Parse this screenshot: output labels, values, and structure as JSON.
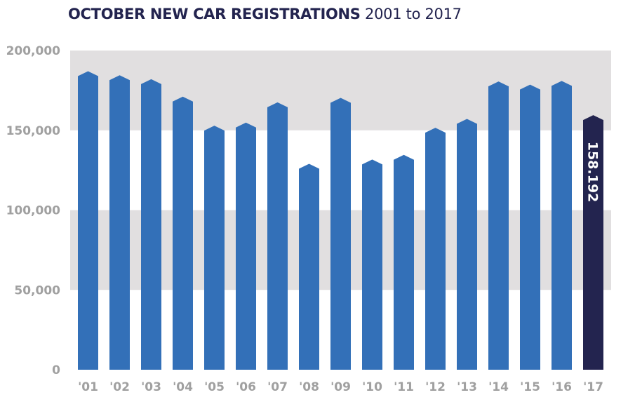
{
  "chart_data": {
    "type": "bar",
    "title": "OCTOBER NEW CAR REGISTRATIONS",
    "subtitle": "2001 to 2017",
    "xlabel": "",
    "ylabel": "",
    "ylim": [
      0,
      200000
    ],
    "yticks": [
      0,
      50000,
      100000,
      150000,
      200000
    ],
    "ytick_labels": [
      "0",
      "50,000",
      "100,000",
      "150,000",
      "200,000"
    ],
    "categories": [
      "'01",
      "'02",
      "'03",
      "'04",
      "'05",
      "'06",
      "'07",
      "'08",
      "'09",
      "'10",
      "'11",
      "'12",
      "'13",
      "'14",
      "'15",
      "'16",
      "'17"
    ],
    "values": [
      185700,
      183200,
      180700,
      169800,
      151600,
      153500,
      166200,
      127700,
      169000,
      130400,
      133300,
      150300,
      155800,
      179300,
      177300,
      179600,
      158192
    ],
    "highlight_index": 16,
    "data_labels": {
      "16": "158.192"
    },
    "grid": "alternating horizontal bands",
    "colors": {
      "bar": "#3370b8",
      "highlight": "#23244f",
      "band": "#e1dfe0",
      "axis_text": "#a0a0a0",
      "title": "#23244f"
    }
  }
}
